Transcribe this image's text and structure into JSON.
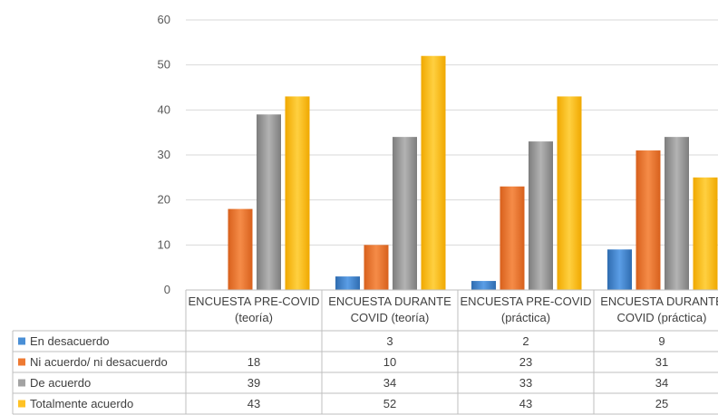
{
  "chart_data": {
    "type": "bar",
    "categories": [
      [
        "ENCUESTA PRE-COVID",
        "(teoría)"
      ],
      [
        "ENCUESTA DURANTE",
        "COVID (teoría)"
      ],
      [
        "ENCUESTA PRE-COVID",
        "(práctica)"
      ],
      [
        "ENCUESTA DURANTE",
        "COVID (práctica)"
      ]
    ],
    "series": [
      {
        "name": "En desacuerdo",
        "values": [
          null,
          3,
          2,
          9
        ],
        "color": "#4a8fd6"
      },
      {
        "name": "Ni acuerdo/ ni desacuerdo",
        "values": [
          18,
          10,
          23,
          31
        ],
        "color": "#ee7a32"
      },
      {
        "name": "De acuerdo",
        "values": [
          39,
          34,
          33,
          34
        ],
        "color": "#a3a3a3"
      },
      {
        "name": "Totalmente acuerdo",
        "values": [
          43,
          52,
          43,
          25
        ],
        "color": "#ffc225"
      }
    ],
    "yticks": [
      0,
      10,
      20,
      30,
      40,
      50,
      60
    ],
    "ylim": [
      0,
      60
    ],
    "grid": true,
    "legend": "data table"
  }
}
